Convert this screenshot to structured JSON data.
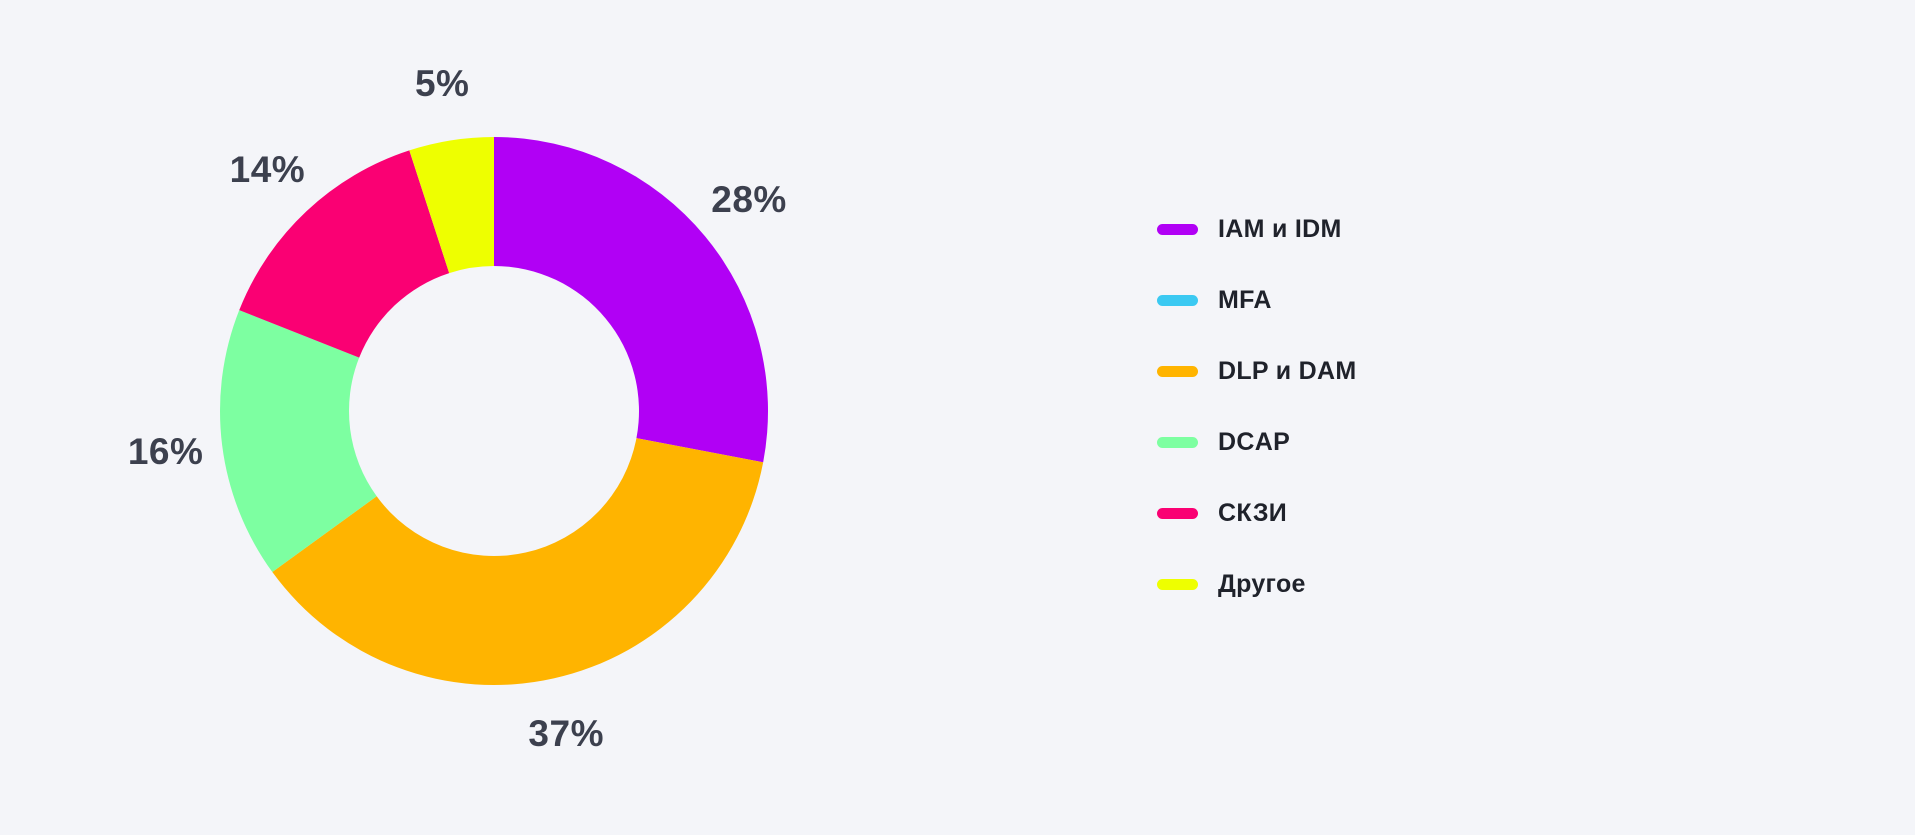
{
  "background_color": "#F4F5F9",
  "chart_data": {
    "type": "pie",
    "subtype": "donut",
    "title": "",
    "label_suffix": "%",
    "series": [
      {
        "label": "IAM и IDM",
        "value": 28,
        "color": "#B100F5"
      },
      {
        "label": "MFA",
        "value": 0,
        "color": "#3BC9F2"
      },
      {
        "label": "DLP и DAM",
        "value": 37,
        "color": "#FFB400"
      },
      {
        "label": "DCAP",
        "value": 16,
        "color": "#7DFFA1"
      },
      {
        "label": "СКЗИ",
        "value": 14,
        "color": "#FA0073"
      },
      {
        "label": "Другое",
        "value": 5,
        "color": "#EEFF00"
      }
    ],
    "visible_slice_labels": [
      "28%",
      "37%",
      "16%",
      "14%",
      "5%"
    ],
    "start_angle": "top",
    "direction": "clockwise",
    "hole_ratio": 0.53,
    "legend_position": "right",
    "slice_label_color": "#3C404E",
    "legend_label_color": "#1F222B"
  }
}
